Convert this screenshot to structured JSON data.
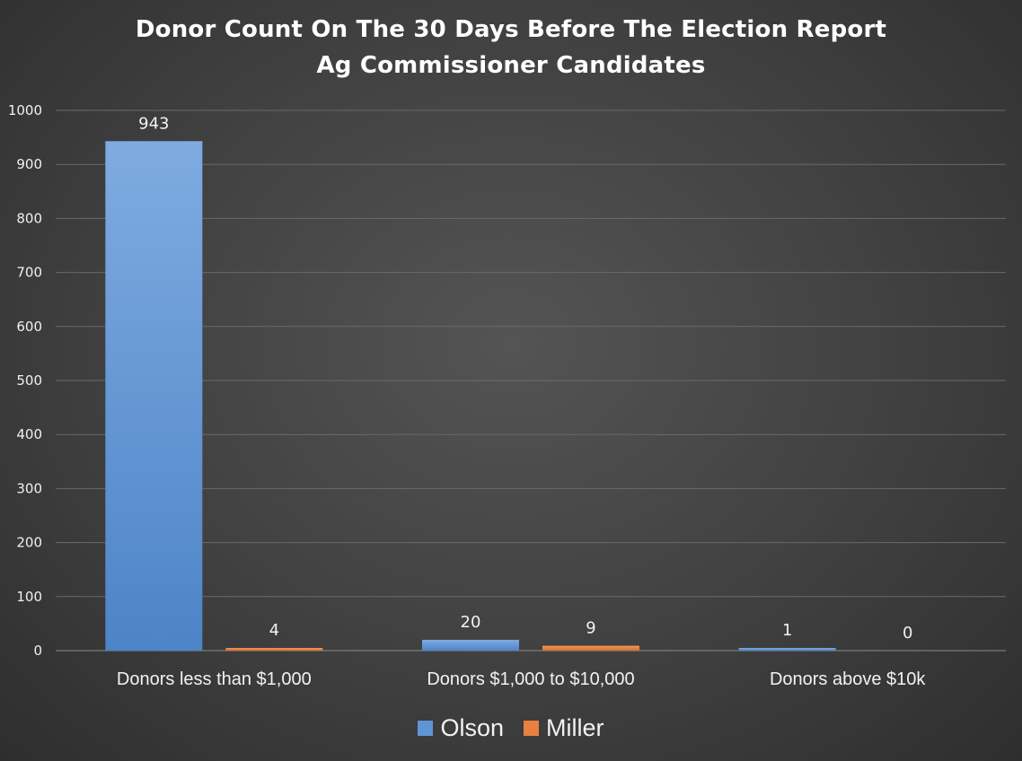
{
  "chart_data": {
    "type": "bar",
    "title": "Donor Count On The 30 Days Before The Election Report",
    "subtitle": "Ag Commissioner Candidates",
    "categories": [
      "Donors less than $1,000",
      "Donors $1,000 to $10,000",
      "Donors above $10k"
    ],
    "series": [
      {
        "name": "Olson",
        "values": [
          943,
          20,
          1
        ],
        "color": "#5f95d6"
      },
      {
        "name": "Miller",
        "values": [
          4,
          9,
          0
        ],
        "color": "#e9803f"
      }
    ],
    "ylim": [
      0,
      1000
    ],
    "yticks": [
      0,
      100,
      200,
      300,
      400,
      500,
      600,
      700,
      800,
      900,
      1000
    ],
    "grid": true,
    "data_labels": true,
    "legend_position": "bottom"
  }
}
